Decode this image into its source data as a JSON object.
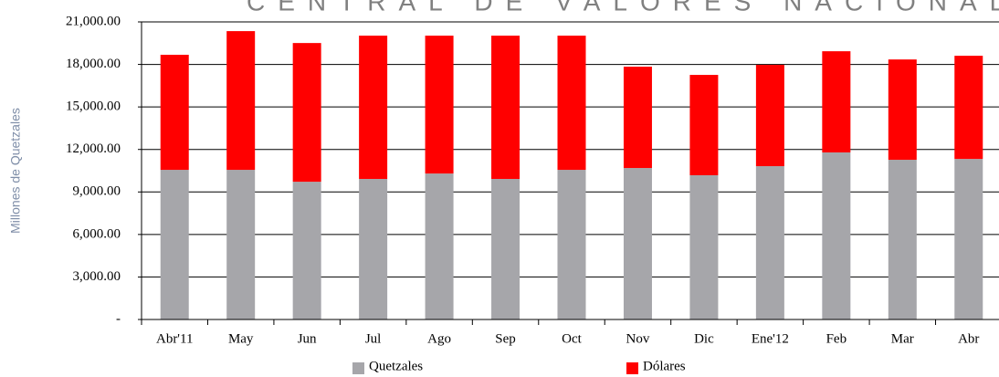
{
  "chart_data": {
    "type": "stacked_bar",
    "title": "CENTRAL DE VALORES NACIONAL",
    "y_label": "Millones de Quetzales",
    "categories": [
      "Abr'11",
      "May",
      "Jun",
      "Jul",
      "Ago",
      "Sep",
      "Oct",
      "Nov",
      "Dic",
      "Ene'12",
      "Feb",
      "Mar",
      "Abr"
    ],
    "series": [
      {
        "name": "Quetzales",
        "color": "#a6a6aa",
        "values": [
          10560,
          10560,
          9720,
          9920,
          10300,
          9920,
          10560,
          10690,
          10180,
          10820,
          11790,
          11270,
          11330
        ]
      },
      {
        "name": "Dólares",
        "color": "#ff0000",
        "values": [
          8120,
          9790,
          9790,
          10110,
          9730,
          10110,
          9470,
          7150,
          7080,
          7150,
          7140,
          7080,
          7280
        ]
      }
    ],
    "ylim": [
      0,
      21000
    ],
    "yticks": [
      {
        "value": 0,
        "label": "-"
      },
      {
        "value": 3000,
        "label": "3,000.00"
      },
      {
        "value": 6000,
        "label": "6,000.00"
      },
      {
        "value": 9000,
        "label": "9,000.00"
      },
      {
        "value": 12000,
        "label": "12,000.00"
      },
      {
        "value": 15000,
        "label": "15,000.00"
      },
      {
        "value": 18000,
        "label": "18,000.00"
      },
      {
        "value": 21000,
        "label": "21,000.00"
      }
    ],
    "grid": true
  }
}
